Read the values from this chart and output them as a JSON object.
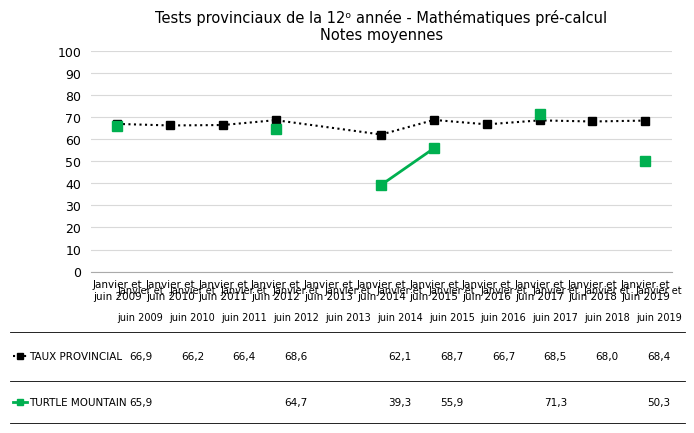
{
  "title_line1": "Tests provinciaux de la 12ᵒ année - Mathématiques pré-calcul",
  "title_line2": "Notes moyennes",
  "categories": [
    "Janvier et\njuin 2009",
    "Janvier et\njuin 2010",
    "Janvier et\njuin 2011",
    "Janvier et\njuin 2012",
    "Janvier et\njuin 2013",
    "Janvier et\njuin 2014",
    "Janvier et\njuin 2015",
    "Janvier et\njuin 2016",
    "Janvier et\njuin 2017",
    "Janvier et\njuin 2018",
    "Janvier et\njuin 2019"
  ],
  "provincial_values": [
    66.9,
    66.2,
    66.4,
    68.6,
    null,
    62.1,
    68.7,
    66.7,
    68.5,
    68.0,
    68.4
  ],
  "turtle_values": [
    65.9,
    null,
    null,
    64.7,
    null,
    39.3,
    55.9,
    null,
    71.3,
    null,
    50.3
  ],
  "provincial_color": "#000000",
  "turtle_color": "#00b050",
  "background_color": "#ffffff",
  "ylim": [
    0,
    100
  ],
  "yticks": [
    0,
    10,
    20,
    30,
    40,
    50,
    60,
    70,
    80,
    90,
    100
  ],
  "grid_color": "#d9d9d9",
  "legend_provincial": "TAUX PROVINCIAL",
  "legend_turtle": "TURTLE MOUNTAIN",
  "table_provincial": [
    "66,9",
    "66,2",
    "66,4",
    "68,6",
    "",
    "62,1",
    "68,7",
    "66,7",
    "68,5",
    "68,0",
    "68,4"
  ],
  "table_turtle": [
    "65,9",
    "",
    "",
    "64,7",
    "",
    "39,3",
    "55,9",
    "",
    "71,3",
    "",
    "50,3"
  ]
}
